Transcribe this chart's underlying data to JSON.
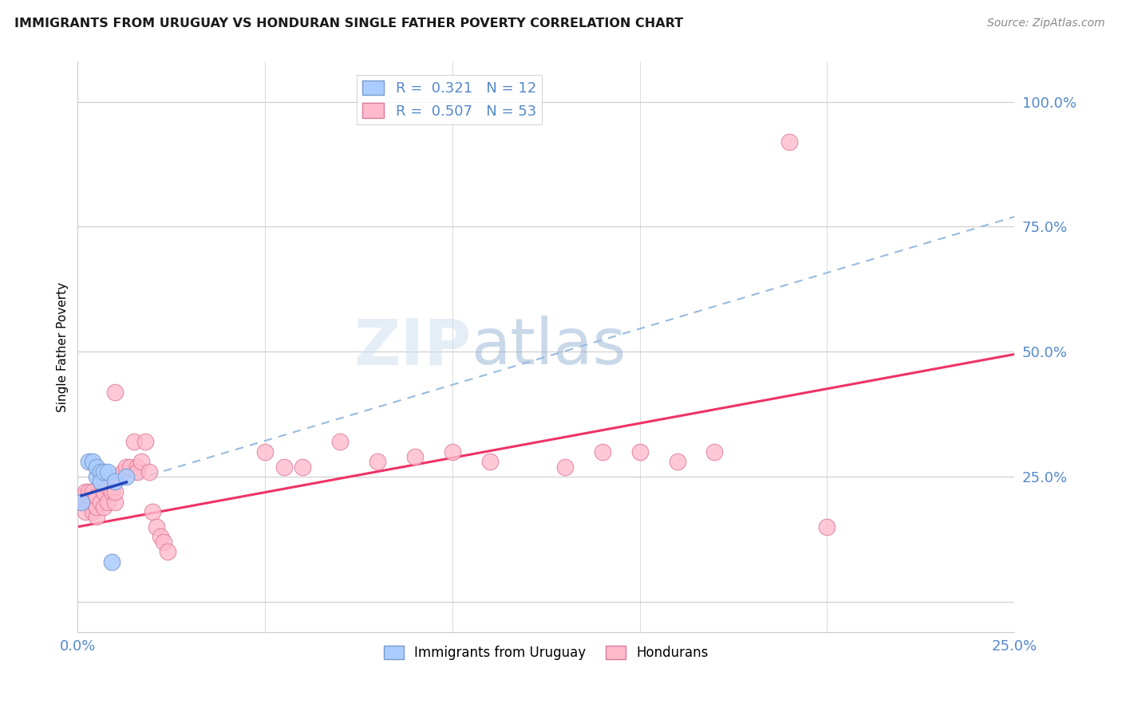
{
  "title": "IMMIGRANTS FROM URUGUAY VS HONDURAN SINGLE FATHER POVERTY CORRELATION CHART",
  "source": "Source: ZipAtlas.com",
  "ylabel": "Single Father Poverty",
  "xlabel_blue": "Immigrants from Uruguay",
  "xlabel_pink": "Hondurans",
  "r_blue": 0.321,
  "n_blue": 12,
  "r_pink": 0.507,
  "n_pink": 53,
  "blue_color": "#aaccff",
  "blue_edge": "#7799cc",
  "pink_color": "#ffbbcc",
  "pink_edge": "#dd7799",
  "trend_blue_solid": "#2244bb",
  "trend_blue_dash": "#99bbdd",
  "trend_pink": "#ee3366",
  "watermark_zip": "ZIP",
  "watermark_atlas": "atlas",
  "axis_color": "#5588cc",
  "grid_color": "#cccccc",
  "blue_scatter_x": [
    0.001,
    0.003,
    0.004,
    0.005,
    0.005,
    0.006,
    0.006,
    0.007,
    0.008,
    0.009,
    0.01,
    0.013
  ],
  "blue_scatter_y": [
    0.2,
    0.28,
    0.28,
    0.25,
    0.27,
    0.26,
    0.24,
    0.26,
    0.26,
    0.08,
    0.24,
    0.25
  ],
  "pink_scatter_x": [
    0.001,
    0.001,
    0.002,
    0.002,
    0.003,
    0.003,
    0.003,
    0.004,
    0.004,
    0.004,
    0.005,
    0.005,
    0.005,
    0.006,
    0.006,
    0.007,
    0.007,
    0.008,
    0.008,
    0.009,
    0.01,
    0.01,
    0.01,
    0.011,
    0.012,
    0.013,
    0.014,
    0.015,
    0.016,
    0.016,
    0.017,
    0.018,
    0.019,
    0.02,
    0.021,
    0.022,
    0.023,
    0.024,
    0.05,
    0.055,
    0.06,
    0.07,
    0.08,
    0.09,
    0.1,
    0.11,
    0.13,
    0.14,
    0.15,
    0.16,
    0.17,
    0.19,
    0.2
  ],
  "pink_scatter_y": [
    0.2,
    0.21,
    0.18,
    0.22,
    0.2,
    0.21,
    0.22,
    0.18,
    0.2,
    0.22,
    0.17,
    0.19,
    0.21,
    0.2,
    0.24,
    0.19,
    0.22,
    0.2,
    0.23,
    0.22,
    0.2,
    0.22,
    0.42,
    0.25,
    0.26,
    0.27,
    0.27,
    0.32,
    0.27,
    0.26,
    0.28,
    0.32,
    0.26,
    0.18,
    0.15,
    0.13,
    0.12,
    0.1,
    0.3,
    0.27,
    0.27,
    0.32,
    0.28,
    0.29,
    0.3,
    0.28,
    0.27,
    0.3,
    0.3,
    0.28,
    0.3,
    0.92,
    0.15
  ],
  "xmin": 0.0,
  "xmax": 0.25,
  "ymin": -0.06,
  "ymax": 1.08,
  "yticks": [
    0.0,
    0.25,
    0.5,
    0.75,
    1.0
  ],
  "ytick_labels": [
    "",
    "25.0%",
    "50.0%",
    "75.0%",
    "100.0%"
  ],
  "xticks": [
    0.0,
    0.05,
    0.1,
    0.15,
    0.2,
    0.25
  ],
  "xtick_labels": [
    "0.0%",
    "",
    "",
    "",
    "",
    "25.0%"
  ],
  "pink_trend_x0": 0.0,
  "pink_trend_y0": 0.15,
  "pink_trend_x1": 0.25,
  "pink_trend_y1": 0.495,
  "blue_trend_x0": 0.0,
  "blue_trend_y0": 0.21,
  "blue_trend_x1": 0.25,
  "blue_trend_y1": 0.77
}
